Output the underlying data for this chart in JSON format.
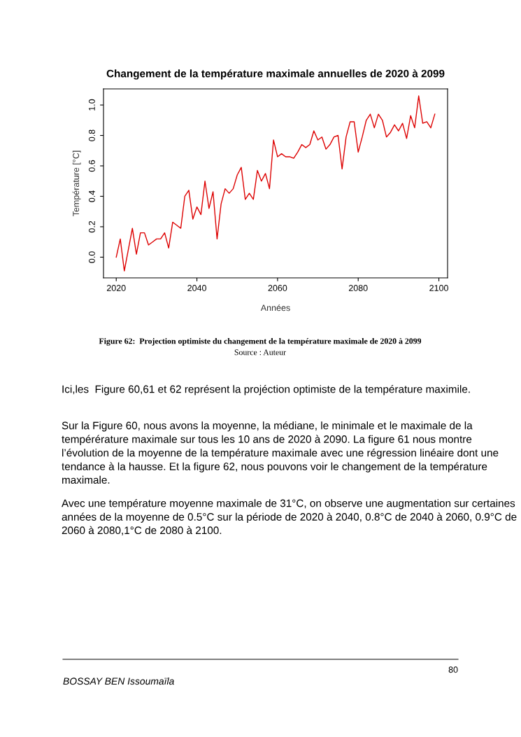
{
  "chart_data": {
    "type": "line",
    "title": "Changement de la température maximale annuelles de 2020 à 2099",
    "xlabel": "Années",
    "ylabel": "Température [°C]",
    "x": [
      2020,
      2021,
      2022,
      2023,
      2024,
      2025,
      2026,
      2027,
      2028,
      2029,
      2030,
      2031,
      2032,
      2033,
      2034,
      2035,
      2036,
      2037,
      2038,
      2039,
      2040,
      2041,
      2042,
      2043,
      2044,
      2045,
      2046,
      2047,
      2048,
      2049,
      2050,
      2051,
      2052,
      2053,
      2054,
      2055,
      2056,
      2057,
      2058,
      2059,
      2060,
      2061,
      2062,
      2063,
      2064,
      2065,
      2066,
      2067,
      2068,
      2069,
      2070,
      2071,
      2072,
      2073,
      2074,
      2075,
      2076,
      2077,
      2078,
      2079,
      2080,
      2081,
      2082,
      2083,
      2084,
      2085,
      2086,
      2087,
      2088,
      2089,
      2090,
      2091,
      2092,
      2093,
      2094,
      2095,
      2096,
      2097,
      2098,
      2099
    ],
    "series": [
      {
        "color": "#dd0000",
        "values": [
          0.0,
          0.12,
          -0.09,
          0.05,
          0.19,
          0.02,
          0.16,
          0.16,
          0.08,
          0.1,
          0.12,
          0.12,
          0.16,
          0.06,
          0.23,
          0.21,
          0.19,
          0.4,
          0.44,
          0.25,
          0.33,
          0.28,
          0.5,
          0.32,
          0.43,
          0.12,
          0.35,
          0.45,
          0.42,
          0.45,
          0.54,
          0.59,
          0.38,
          0.42,
          0.38,
          0.57,
          0.5,
          0.55,
          0.45,
          0.77,
          0.66,
          0.68,
          0.66,
          0.66,
          0.65,
          0.69,
          0.74,
          0.72,
          0.74,
          0.83,
          0.77,
          0.79,
          0.71,
          0.74,
          0.79,
          0.8,
          0.58,
          0.79,
          0.89,
          0.89,
          0.69,
          0.79,
          0.9,
          0.94,
          0.85,
          0.94,
          0.9,
          0.79,
          0.82,
          0.87,
          0.83,
          0.88,
          0.78,
          0.93,
          0.85,
          1.06,
          0.88,
          0.89,
          0.85,
          0.94
        ]
      }
    ],
    "xlim": [
      2016.84,
      2102.16
    ],
    "ylim": [
      -0.136,
      1.106
    ],
    "xticks": [
      2020,
      2040,
      2060,
      2080,
      2100
    ],
    "yticks": [
      {
        "value": 0,
        "label": "0.0"
      },
      {
        "value": 0.2,
        "label": "0.2"
      },
      {
        "value": 0.4,
        "label": "0.4"
      },
      {
        "value": 0.6,
        "label": "0.6"
      },
      {
        "value": 0.8,
        "label": "0.8"
      },
      {
        "value": 1.0,
        "label": "1.0"
      }
    ],
    "grid": false,
    "marker": "none",
    "line_style": "solid",
    "annotations": [
      "Figure 62:  Projection optimiste du changement de la température maximale de 2020 à 2099",
      "Source : Auteur",
      "Ici,les  Figure 60,61 et 62 représent la projéction optimiste de la température maximile.",
      "Sur la Figure 60, nous avons la moyenne, la médiane, le minimale et le maximale de la tempérérature maximale sur tous les 10 ans de 2020 à 2090. La figure 61 nous montre l’évolution de la moyenne de la température maximale avec une régression linéaire dont une tendance à la hausse. Et la figure 62, nous pouvons voir le changement de la température maximale.",
      "Avec une température moyenne maximale de 31°C, on observe une augmentation sur certaines années de la moyenne de 0.5°C sur la période de 2020 à 2040, 0.8°C de 2040 à 2060, 0.9°C de 2060 à 2080,1°C de 2080 à 2100.",
      "80",
      "BOSSAY BEN Issoumaïla"
    ]
  }
}
